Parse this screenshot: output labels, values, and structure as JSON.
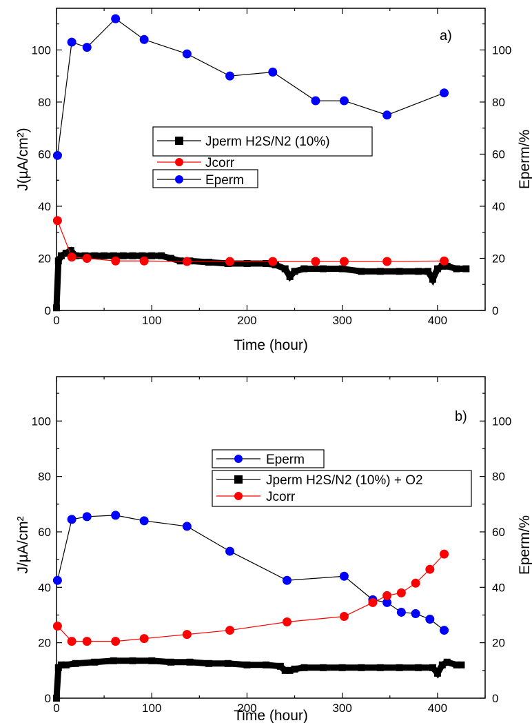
{
  "chart_data": [
    {
      "type": "line",
      "panel_label": "a)",
      "xlabel": "Time (hour)",
      "ylabel": "J(µA/cm²)",
      "ylabel_right": "Eperm/%",
      "xlim": [
        0,
        450
      ],
      "ylim": [
        0,
        116
      ],
      "ylim_right": [
        0,
        116
      ],
      "xticks": [
        0,
        100,
        200,
        300,
        400
      ],
      "yticks": [
        0,
        20,
        40,
        60,
        80,
        100
      ],
      "yticks_right": [
        0,
        20,
        40,
        60,
        80,
        100
      ],
      "legend": {
        "placement": "center",
        "entries": [
          "Jperm H2S/N2 (10%)",
          "Jcorr",
          "Eperm"
        ]
      },
      "series": [
        {
          "name": "Jperm H2S/N2 (10%)",
          "axis": "left",
          "color": "#000000",
          "marker": "square",
          "x": [
            0,
            2,
            5,
            10,
            15,
            20,
            30,
            40,
            50,
            60,
            70,
            80,
            90,
            100,
            110,
            120,
            130,
            140,
            160,
            180,
            200,
            220,
            230,
            240,
            245,
            250,
            260,
            280,
            300,
            320,
            340,
            360,
            380,
            390,
            395,
            400,
            405,
            410,
            420,
            430
          ],
          "y": [
            1,
            19,
            21,
            22,
            23,
            21,
            21,
            21,
            21,
            21,
            21,
            21,
            21,
            21,
            21,
            20,
            19,
            19,
            18.5,
            18,
            18,
            18,
            17.5,
            16,
            13,
            15,
            16,
            16,
            16,
            15,
            15,
            15,
            15,
            15,
            12,
            16,
            17,
            17,
            16,
            16
          ]
        },
        {
          "name": "Jcorr",
          "axis": "left",
          "color": "#ff0000",
          "marker": "circle",
          "x": [
            1,
            16,
            32,
            62,
            92,
            137,
            182,
            227,
            272,
            302,
            347,
            407
          ],
          "y": [
            34.5,
            20.5,
            20,
            19,
            19,
            18.8,
            18.8,
            18.8,
            18.8,
            18.8,
            18.8,
            19
          ]
        },
        {
          "name": "Eperm",
          "axis": "right",
          "color": "#0000ff",
          "marker": "circle",
          "x": [
            1,
            16,
            32,
            62,
            92,
            137,
            182,
            227,
            272,
            302,
            347,
            407
          ],
          "y": [
            59.5,
            103,
            101,
            112,
            104,
            98.5,
            90,
            91.5,
            80.5,
            80.5,
            75,
            83.5
          ]
        }
      ]
    },
    {
      "type": "line",
      "panel_label": "b)",
      "xlabel": "Time (hour)",
      "ylabel": "J/µA/cm²",
      "ylabel_right": "Eperm/%",
      "xlim": [
        0,
        450
      ],
      "ylim": [
        0,
        116
      ],
      "ylim_right": [
        0,
        116
      ],
      "xticks": [
        0,
        100,
        200,
        300,
        400
      ],
      "yticks": [
        0,
        20,
        40,
        60,
        80,
        100
      ],
      "yticks_right": [
        0,
        20,
        40,
        60,
        80,
        100
      ],
      "legend": {
        "placement": "top-right",
        "entries": [
          "Eperm",
          "Jperm H2S/N2 (10%) + O2",
          "Jcorr"
        ]
      },
      "series": [
        {
          "name": "Eperm",
          "axis": "right",
          "color": "#0000ff",
          "marker": "circle",
          "x": [
            1,
            16,
            32,
            62,
            92,
            137,
            182,
            242,
            302,
            332,
            347,
            362,
            377,
            392,
            407
          ],
          "y": [
            42.5,
            64.5,
            65.5,
            66,
            64,
            62,
            53,
            42.5,
            44,
            35.5,
            34.5,
            31,
            30.5,
            28.5,
            24.5
          ]
        },
        {
          "name": "Jperm H2S/N2 (10%) + O2",
          "axis": "left",
          "color": "#000000",
          "marker": "square",
          "x": [
            0,
            2,
            5,
            10,
            20,
            40,
            60,
            80,
            100,
            120,
            140,
            160,
            180,
            200,
            220,
            235,
            240,
            245,
            250,
            260,
            280,
            300,
            320,
            340,
            360,
            380,
            395,
            400,
            405,
            410,
            420,
            425
          ],
          "y": [
            0,
            11,
            12,
            12,
            12.5,
            13,
            13.5,
            13.5,
            13.5,
            13,
            13,
            12.5,
            12.5,
            12,
            12,
            11.5,
            10,
            10,
            10.5,
            11,
            11,
            11,
            11,
            11,
            11,
            11,
            11,
            9,
            12,
            13,
            12,
            12
          ]
        },
        {
          "name": "Jcorr",
          "axis": "left",
          "color": "#ff0000",
          "marker": "circle",
          "x": [
            1,
            16,
            32,
            62,
            92,
            137,
            182,
            242,
            302,
            332,
            347,
            362,
            377,
            392,
            407
          ],
          "y": [
            26,
            20.5,
            20.5,
            20.5,
            21.5,
            23,
            24.5,
            27.5,
            29.5,
            34.5,
            37,
            38,
            41.5,
            46.5,
            52
          ]
        }
      ]
    }
  ]
}
